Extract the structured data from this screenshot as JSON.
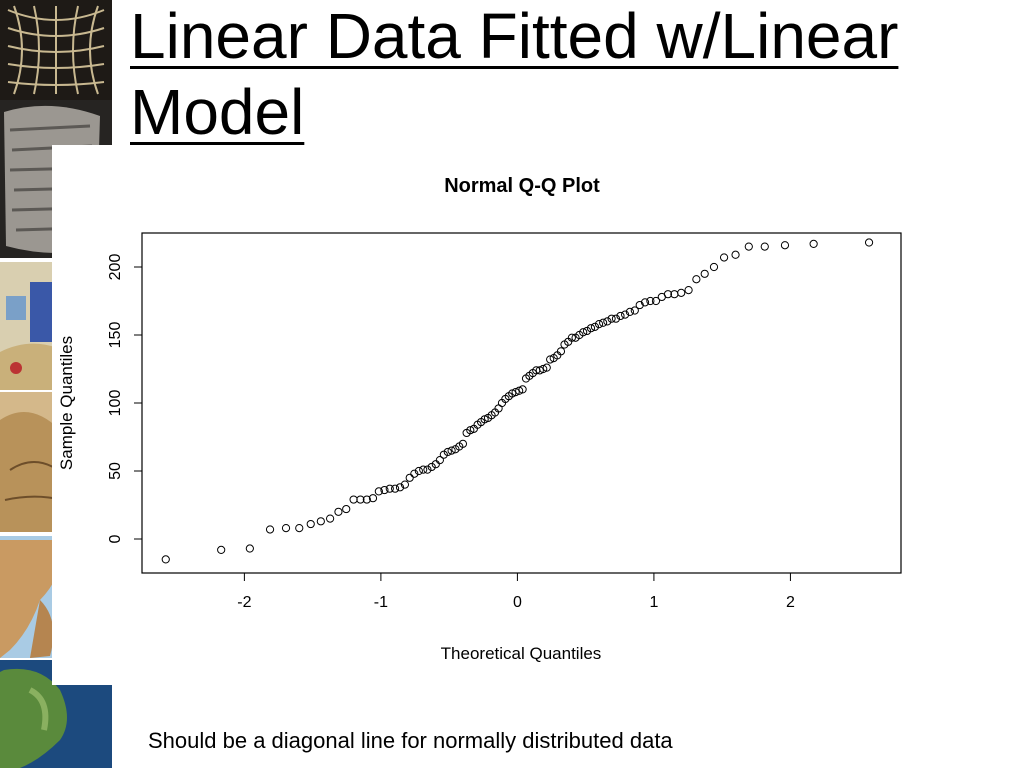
{
  "slide": {
    "title": "Linear Data Fitted w/Linear Model",
    "caption": "Should be a diagonal line for normally distributed data"
  },
  "chart_data": {
    "type": "scatter",
    "title": "Normal Q-Q Plot",
    "xlabel": "Theoretical Quantiles",
    "ylabel": "Sample Quantiles",
    "xlim": [
      -2.75,
      2.81
    ],
    "ylim": [
      -25,
      225
    ],
    "xticks": [
      -2,
      -1,
      0,
      1,
      2
    ],
    "yticks": [
      0,
      50,
      100,
      150,
      200
    ],
    "grid": false,
    "x": [
      -2.576,
      -2.17,
      -1.96,
      -1.812,
      -1.695,
      -1.598,
      -1.514,
      -1.44,
      -1.372,
      -1.311,
      -1.254,
      -1.2,
      -1.15,
      -1.103,
      -1.058,
      -1.015,
      -0.974,
      -0.935,
      -0.896,
      -0.86,
      -0.824,
      -0.789,
      -0.755,
      -0.722,
      -0.69,
      -0.659,
      -0.628,
      -0.598,
      -0.568,
      -0.539,
      -0.51,
      -0.482,
      -0.454,
      -0.426,
      -0.399,
      -0.372,
      -0.345,
      -0.319,
      -0.292,
      -0.266,
      -0.24,
      -0.215,
      -0.189,
      -0.164,
      -0.138,
      -0.113,
      -0.088,
      -0.063,
      -0.038,
      -0.013,
      0.013,
      0.038,
      0.063,
      0.088,
      0.113,
      0.138,
      0.164,
      0.189,
      0.215,
      0.24,
      0.266,
      0.292,
      0.319,
      0.345,
      0.372,
      0.399,
      0.426,
      0.454,
      0.482,
      0.51,
      0.539,
      0.568,
      0.598,
      0.628,
      0.659,
      0.69,
      0.722,
      0.755,
      0.789,
      0.824,
      0.86,
      0.896,
      0.935,
      0.974,
      1.015,
      1.058,
      1.103,
      1.15,
      1.2,
      1.254,
      1.311,
      1.372,
      1.44,
      1.514,
      1.598,
      1.695,
      1.812,
      1.96,
      2.17,
      2.576
    ],
    "y": [
      -15,
      -8,
      -7,
      7,
      8,
      8,
      11,
      13,
      15,
      20,
      22,
      29,
      29,
      29,
      30,
      35,
      36,
      37,
      37,
      38,
      40,
      45,
      48,
      50,
      51,
      51,
      53,
      55,
      58,
      62,
      64,
      65,
      66,
      68,
      70,
      78,
      80,
      81,
      84,
      86,
      88,
      89,
      91,
      93,
      96,
      100,
      103,
      105,
      107,
      108,
      109,
      110,
      118,
      120,
      122,
      124,
      124,
      125,
      126,
      132,
      133,
      135,
      138,
      143,
      145,
      148,
      148,
      150,
      152,
      153,
      155,
      156,
      158,
      159,
      160,
      162,
      162,
      164,
      165,
      167,
      168,
      172,
      174,
      175,
      175,
      178,
      180,
      180,
      181,
      183,
      191,
      195,
      200,
      207,
      209,
      215,
      215,
      216,
      217,
      218
    ]
  }
}
